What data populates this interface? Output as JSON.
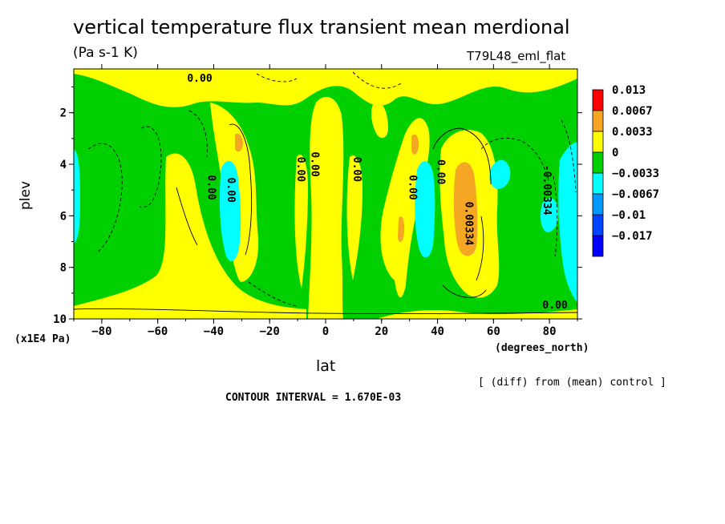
{
  "title": "vertical temperature flux transient mean merdional",
  "units": "(Pa s-1 K)",
  "run_label": "T79L48_eml_flat",
  "diff_note": "[ (diff) from (mean) control ]",
  "contour_interval": "CONTOUR INTERVAL = 1.670E-03",
  "chart_data": {
    "type": "heatmap",
    "title": "vertical temperature flux transient mean merdional",
    "xlabel": "lat",
    "x_units": "(degrees_north)",
    "ylabel": "plev",
    "y_units": "(x1E4 Pa)",
    "xlim": [
      -90,
      90
    ],
    "ylim": [
      10,
      0.3
    ],
    "x_ticks": [
      "-80",
      "-60",
      "-40",
      "-20",
      "0",
      "20",
      "40",
      "60",
      "80"
    ],
    "y_ticks": [
      "2",
      "4",
      "6",
      "8",
      "10"
    ],
    "legend": {
      "placement": "right",
      "bins": [
        {
          "lower": "0.013",
          "color": "#ff0000"
        },
        {
          "lower": "0.0067",
          "color": "#f5a623"
        },
        {
          "lower": "0.0033",
          "color": "#ffff00"
        },
        {
          "lower": "0",
          "color": "#00d000"
        },
        {
          "lower": "-0.0033",
          "color": "#00ffff"
        },
        {
          "lower": "-0.0067",
          "color": "#0099ff"
        },
        {
          "lower": "-0.01",
          "color": "#0044ff"
        },
        {
          "lower": "-0.017",
          "color": "#0000ff"
        }
      ],
      "labels": [
        "0.013",
        "0.0067",
        "0.0033",
        "0",
        "-0.0033",
        "-0.0067",
        "-0.01",
        "-0.017"
      ]
    },
    "contour_labels": [
      {
        "text": "0.00",
        "lat": -45,
        "plev": 0.8
      },
      {
        "text": "0.00",
        "lat": -42,
        "plev": 4.9
      },
      {
        "text": "0.00",
        "lat": -35,
        "plev": 5.0
      },
      {
        "text": "0.00",
        "lat": -10,
        "plev": 4.2
      },
      {
        "text": "0.00",
        "lat": -5,
        "plev": 4.0
      },
      {
        "text": "0.00",
        "lat": 10,
        "plev": 4.2
      },
      {
        "text": "0.00",
        "lat": 30,
        "plev": 4.9
      },
      {
        "text": "0.00",
        "lat": 40,
        "plev": 4.3
      },
      {
        "text": "0.00334",
        "lat": 50,
        "plev": 6.3
      },
      {
        "text": "-0.00334",
        "lat": 78,
        "plev": 5.0
      },
      {
        "text": "0.00",
        "lat": 82,
        "plev": 9.6
      }
    ]
  }
}
